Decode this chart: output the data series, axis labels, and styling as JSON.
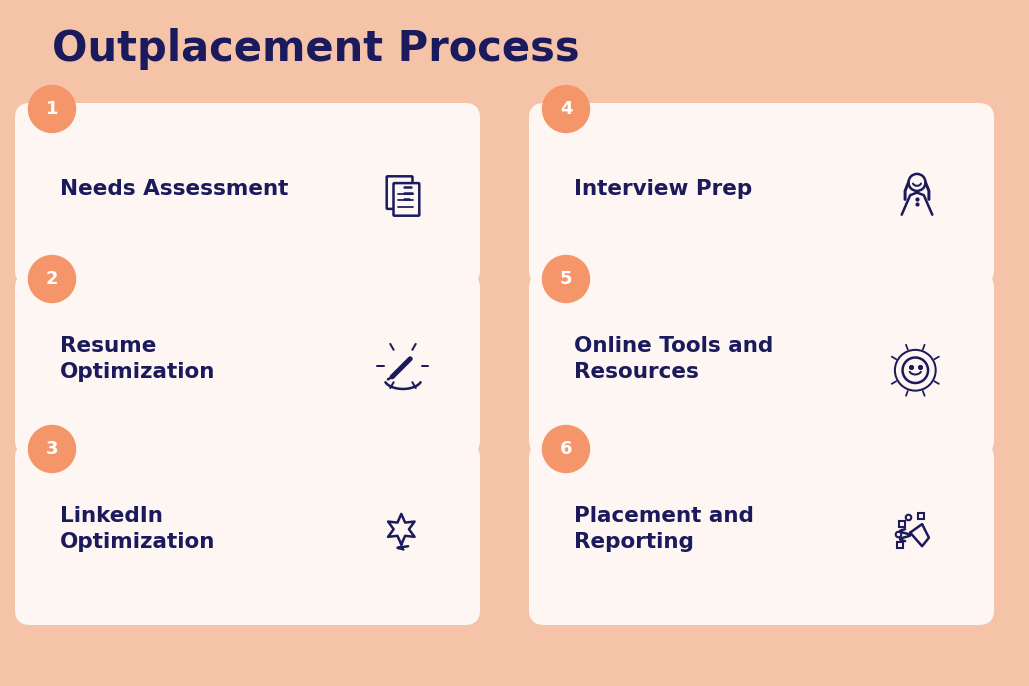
{
  "title": "Outplacement Process",
  "title_color": "#1a1a5c",
  "title_fontsize": 30,
  "background_color": "#f5c4a8",
  "card_bg": "#fdf6f2",
  "number_circle_color": "#f5956a",
  "number_text_color": "#ffffff",
  "text_color": "#1a1a5c",
  "steps": [
    {
      "number": "1",
      "label": "Needs Assessment"
    },
    {
      "number": "2",
      "label": "Resume\nOptimization"
    },
    {
      "number": "3",
      "label": "LinkedIn\nOptimization"
    },
    {
      "number": "4",
      "label": "Interview Prep"
    },
    {
      "number": "5",
      "label": "Online Tools and\nResources"
    },
    {
      "number": "6",
      "label": "Placement and\nReporting"
    }
  ],
  "figsize": [
    10.29,
    6.86
  ],
  "dpi": 100
}
